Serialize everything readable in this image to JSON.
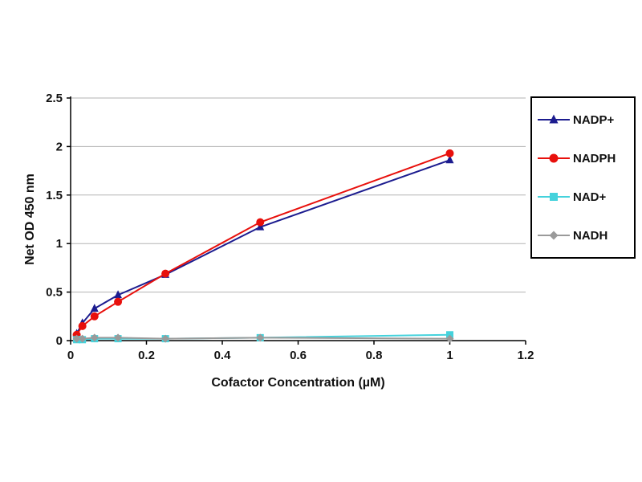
{
  "chart_data": {
    "type": "line",
    "title": "",
    "xlabel": "Cofactor Concentration (µM)",
    "ylabel": "Net OD 450 nm",
    "xlim": [
      0,
      1.2
    ],
    "ylim": [
      0,
      2.5
    ],
    "x_ticks": [
      0,
      0.2,
      0.4,
      0.6,
      0.8,
      1,
      1.2
    ],
    "x_tick_labels": [
      "0",
      "0.2",
      "0.4",
      "0.6",
      "0.8",
      "1",
      "1.2"
    ],
    "y_ticks": [
      0,
      0.5,
      1,
      1.5,
      2,
      2.5
    ],
    "y_tick_labels": [
      "0",
      "0.5",
      "1",
      "1.5",
      "2",
      "2.5"
    ],
    "grid": "horizontal",
    "legend_position": "right",
    "x": [
      0.016,
      0.031,
      0.063,
      0.125,
      0.25,
      0.5,
      1
    ],
    "series": [
      {
        "name": "NADP+",
        "color": "#1c1c8f",
        "marker": "triangle",
        "values": [
          0.07,
          0.18,
          0.33,
          0.47,
          0.68,
          1.17,
          1.86
        ]
      },
      {
        "name": "NADPH",
        "color": "#e8100c",
        "marker": "circle",
        "values": [
          0.06,
          0.15,
          0.25,
          0.4,
          0.69,
          1.22,
          1.93
        ]
      },
      {
        "name": "NAD+",
        "color": "#45d2dc",
        "marker": "square",
        "values": [
          0.01,
          0.01,
          0.02,
          0.02,
          0.02,
          0.03,
          0.06
        ]
      },
      {
        "name": "NADH",
        "color": "#9a9a9a",
        "marker": "diamond",
        "values": [
          0.02,
          0.02,
          0.03,
          0.03,
          0.02,
          0.03,
          0.02
        ]
      }
    ]
  }
}
